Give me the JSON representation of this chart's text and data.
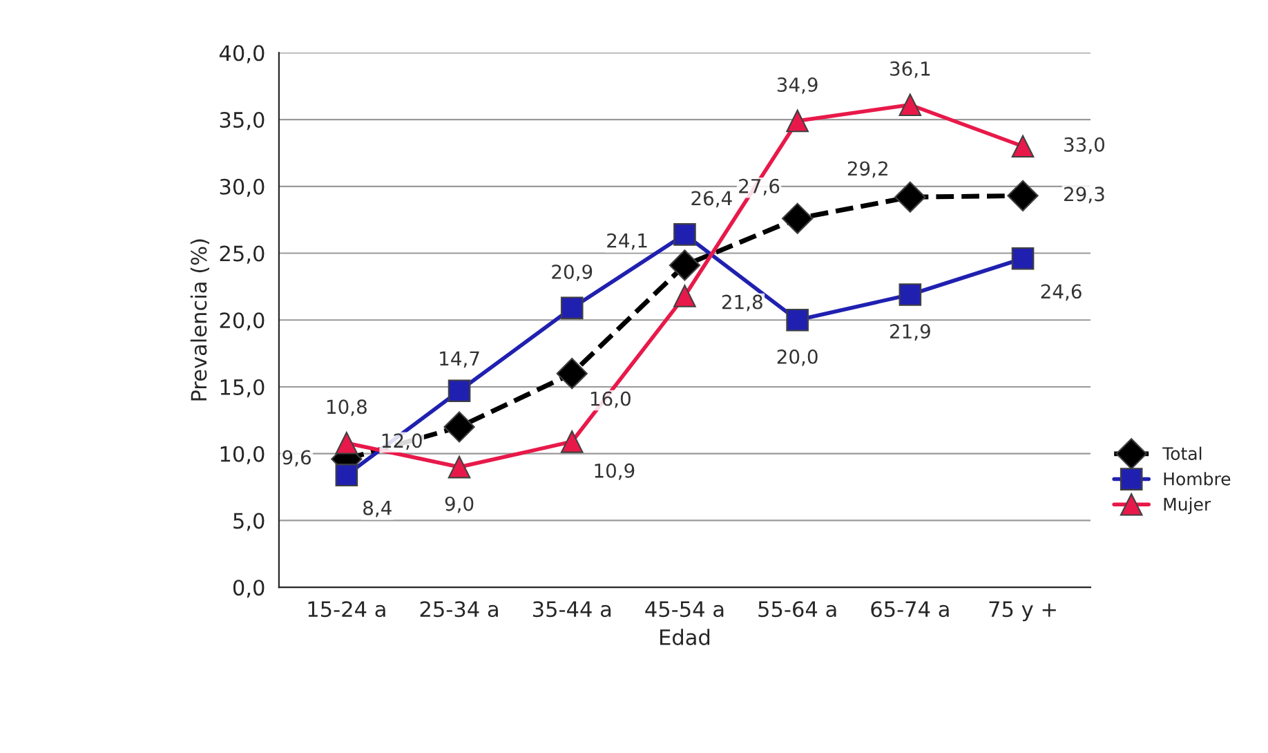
{
  "chart_data": {
    "type": "line",
    "xlabel": "Edad",
    "ylabel": "Prevalencia (%)",
    "categories": [
      "15-24 a",
      "25-34 a",
      "35-44 a",
      "45-54 a",
      "55-64 a",
      "65-74 a",
      "75 y +"
    ],
    "series": [
      {
        "name": "Total",
        "color": "#000000",
        "values": [
          9.6,
          12.0,
          16.0,
          24.1,
          27.6,
          29.2,
          29.3
        ],
        "value_labels": [
          "9,6",
          "12,0",
          "16,0",
          "24,1",
          "27,6",
          "29,2",
          "29,3"
        ],
        "line_style": "dashed",
        "marker": "diamond"
      },
      {
        "name": "Hombre",
        "color": "#2020b0",
        "values": [
          8.4,
          14.7,
          20.9,
          26.4,
          20.0,
          21.9,
          24.6
        ],
        "value_labels": [
          "8,4",
          "14,7",
          "20,9",
          "26,4",
          "20,0",
          "21,9",
          "24,6"
        ],
        "line_style": "solid",
        "marker": "square"
      },
      {
        "name": "Mujer",
        "color": "#e8194a",
        "values": [
          10.8,
          9.0,
          10.9,
          21.8,
          34.9,
          36.1,
          33.0
        ],
        "value_labels": [
          "10,8",
          "9,0",
          "10,9",
          "21,8",
          "34,9",
          "36,1",
          "33,0"
        ],
        "line_style": "solid",
        "marker": "triangle"
      }
    ],
    "ylim": [
      0,
      40
    ],
    "yticks": [
      {
        "value": 0,
        "label": "0,0"
      },
      {
        "value": 5,
        "label": "5,0"
      },
      {
        "value": 10,
        "label": "10,0"
      },
      {
        "value": 15,
        "label": "15,0"
      },
      {
        "value": 20,
        "label": "20,0"
      },
      {
        "value": 25,
        "label": "25,0"
      },
      {
        "value": 30,
        "label": "30,0"
      },
      {
        "value": 35,
        "label": "35,0"
      },
      {
        "value": 40,
        "label": "40,0"
      }
    ],
    "grid": "y",
    "legend": "right"
  }
}
